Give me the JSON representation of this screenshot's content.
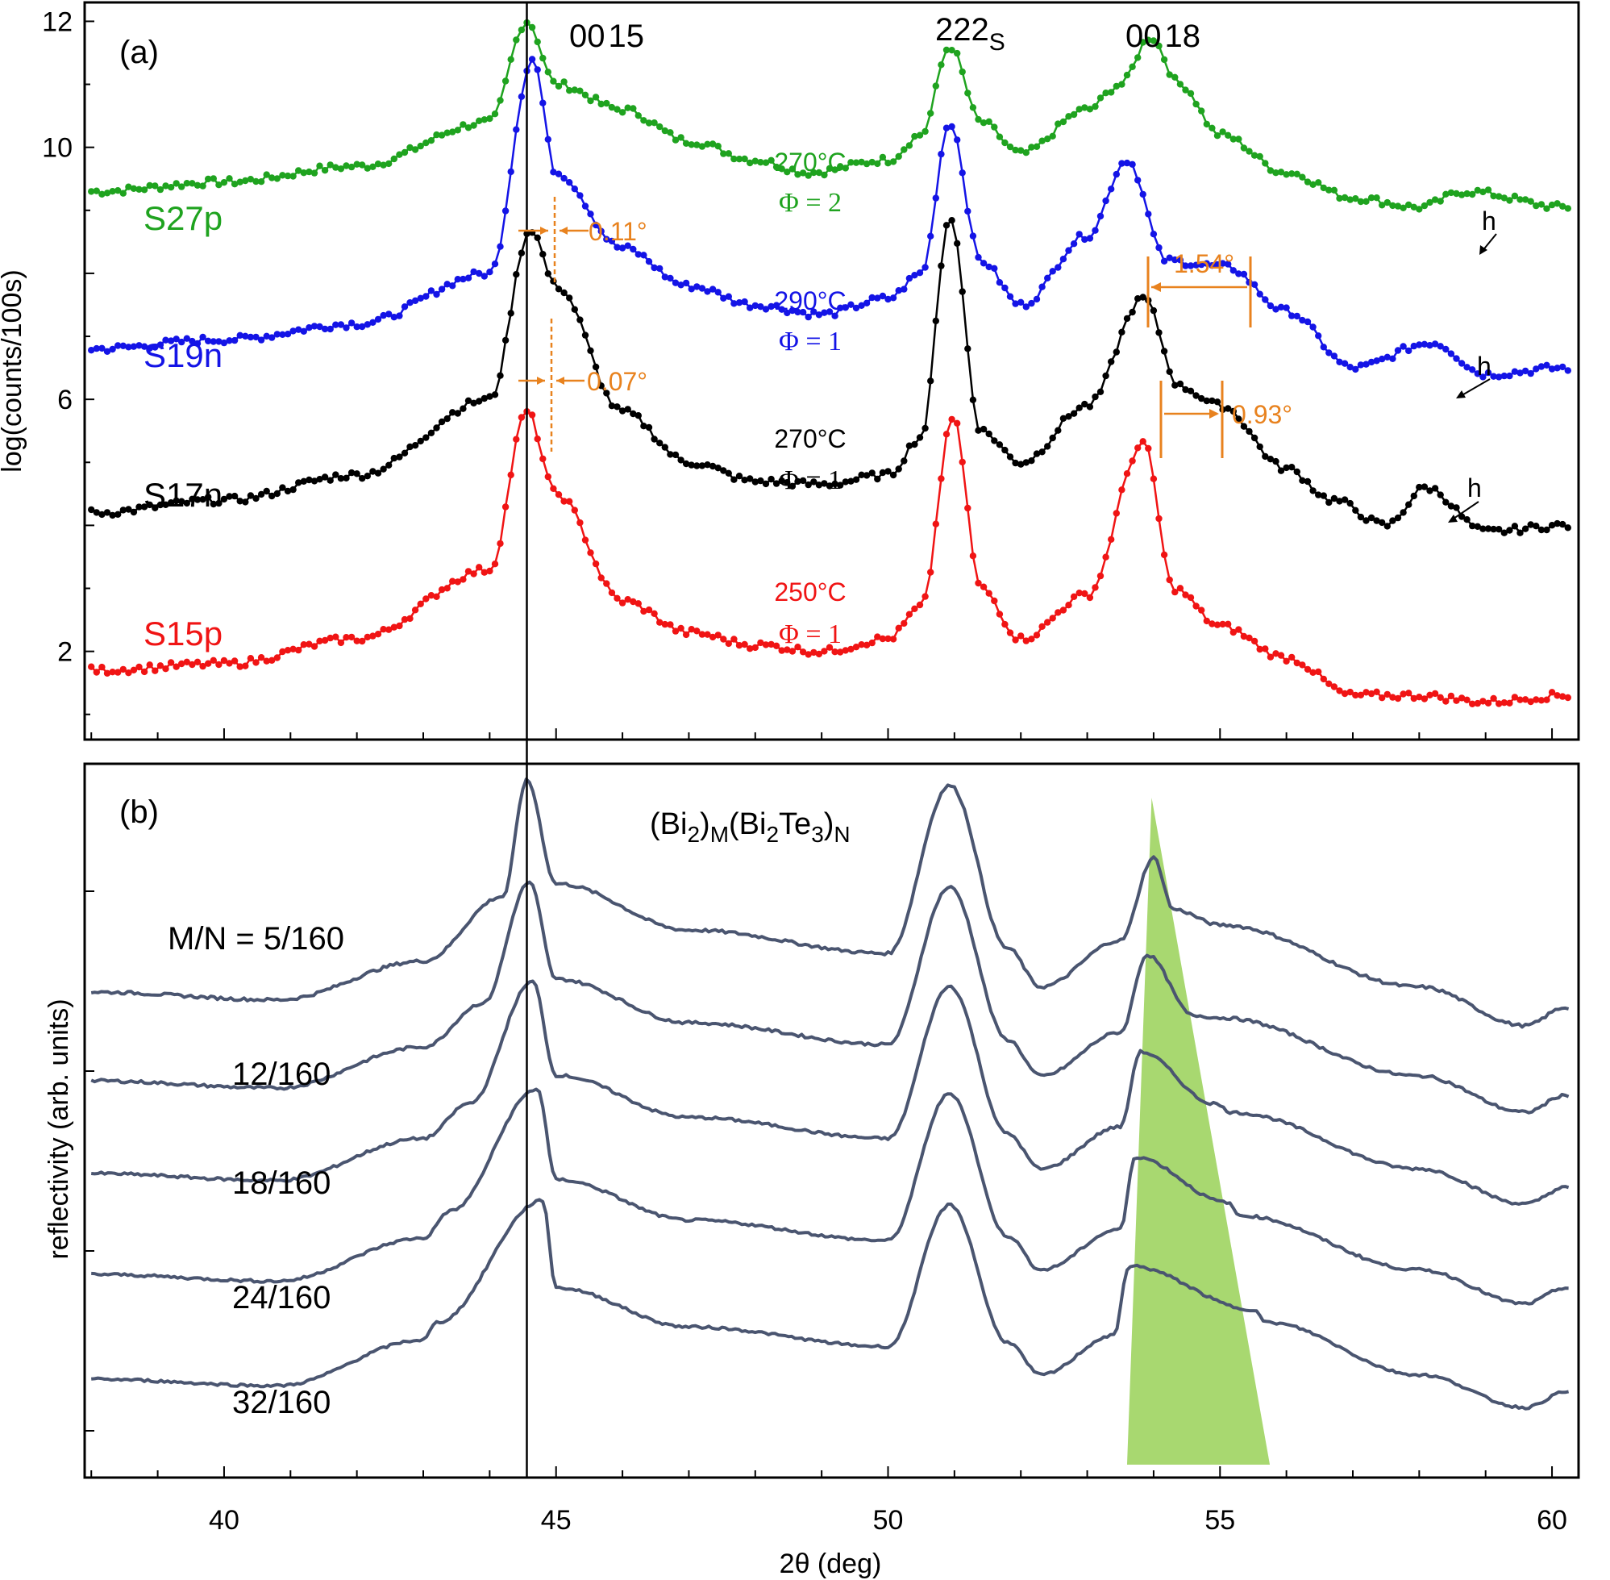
{
  "colors": {
    "green": "#1fa31f",
    "blue": "#1414e6",
    "black": "#000000",
    "red": "#f01414",
    "sim": "#4a5570",
    "orange": "#e8821e",
    "wedge": "#a8d870"
  },
  "chart_data": [
    {
      "type": "line",
      "panel_label": "(a)",
      "title": "",
      "xlabel": "",
      "ylabel": "log(counts/100s)",
      "xlim": [
        37.9,
        60.4
      ],
      "ylim": [
        0.6,
        12.3
      ],
      "xticks": [
        40,
        45,
        50,
        55,
        60
      ],
      "yticks": [
        2,
        6,
        10
      ],
      "ytick_labels": [
        "2",
        "6",
        "10"
      ],
      "top_tick_label": "12",
      "reference_line_x": 44.56,
      "peak_labels": [
        {
          "text": "00",
          "text2": "15",
          "x": 44.56,
          "y": 12.0
        },
        {
          "text": "222",
          "sub": "S",
          "x": 50.93,
          "y": 12.0
        },
        {
          "text": "00",
          "text2": "18",
          "x": 53.95,
          "y": 12.0
        }
      ],
      "series": [
        {
          "name": "S27p",
          "color_key": "green",
          "temperature": "270°C",
          "phi": "Φ = 2",
          "baseline": 9.3,
          "base_slope": 0.05,
          "bg_peak": 0.0,
          "bg_peak_x": 53.5,
          "bg_peak_w": 0.9,
          "x": [
            38,
            40,
            42,
            44,
            44.56,
            45,
            46,
            47,
            48,
            48.8,
            50,
            50.5,
            50.93,
            51.4,
            52,
            53,
            53.5,
            53.95,
            54.4,
            55,
            56,
            57,
            58,
            58.7,
            60.2
          ],
          "values": [
            9.3,
            9.45,
            9.7,
            10.4,
            12.0,
            11.0,
            10.6,
            10.1,
            9.8,
            9.6,
            9.8,
            10.2,
            11.6,
            10.4,
            9.9,
            10.6,
            11.0,
            11.75,
            11.0,
            10.2,
            9.6,
            9.2,
            9.05,
            9.3,
            9.05
          ]
        },
        {
          "name": "S19n",
          "color_key": "blue",
          "temperature": "290°C",
          "phi": "Φ = 1",
          "x": [
            38,
            40,
            42,
            44,
            44.65,
            45,
            46,
            47,
            48,
            49,
            50,
            50.5,
            50.93,
            51.4,
            52,
            53,
            53.6,
            54.2,
            55.1,
            56,
            57,
            58.2,
            59,
            60.2
          ],
          "values": [
            6.8,
            6.95,
            7.2,
            8.0,
            11.4,
            9.6,
            8.4,
            7.8,
            7.5,
            7.35,
            7.6,
            8.0,
            10.4,
            8.2,
            7.5,
            8.6,
            9.8,
            8.2,
            8.1,
            7.4,
            6.5,
            6.9,
            6.4,
            6.5
          ]
        },
        {
          "name": "S17n",
          "color_key": "black",
          "temperature": "270°C",
          "phi": "Φ = 1",
          "x": [
            38,
            40,
            42,
            44,
            44.62,
            45,
            46,
            47,
            48,
            49,
            50,
            50.5,
            50.93,
            51.4,
            52,
            53,
            53.85,
            54.4,
            55,
            56,
            56.7,
            57.5,
            58.1,
            59,
            60.2
          ],
          "values": [
            4.2,
            4.4,
            4.8,
            6.0,
            8.7,
            7.8,
            5.8,
            5.0,
            4.7,
            4.65,
            4.8,
            5.4,
            8.9,
            5.5,
            5.0,
            5.9,
            7.6,
            6.2,
            5.9,
            4.9,
            4.4,
            4.0,
            4.6,
            3.9,
            4.0
          ]
        },
        {
          "name": "S15p",
          "color_key": "red",
          "temperature": "250°C",
          "phi": "Φ = 1",
          "x": [
            38,
            40,
            42,
            44,
            44.56,
            45,
            46,
            47,
            48,
            49,
            50,
            50.5,
            50.98,
            51.4,
            52,
            53,
            53.85,
            54.3,
            55,
            56,
            57,
            58,
            59,
            60.2
          ],
          "values": [
            1.7,
            1.8,
            2.2,
            3.3,
            5.8,
            4.5,
            2.8,
            2.3,
            2.1,
            2.0,
            2.2,
            2.7,
            5.7,
            3.0,
            2.2,
            2.9,
            5.3,
            3.0,
            2.4,
            1.9,
            1.3,
            1.3,
            1.2,
            1.3
          ]
        }
      ],
      "annotations": [
        {
          "text": "0.11°",
          "color_key": "orange",
          "x": 44.7,
          "y": 9.6
        },
        {
          "text": "0.07°",
          "color_key": "orange",
          "x": 44.65,
          "y": 6.2
        },
        {
          "text": "1.54°",
          "color_key": "orange",
          "x": 54.4,
          "y": 9.1
        },
        {
          "text": "0.93°",
          "color_key": "orange",
          "x": 54.35,
          "y": 6.7
        },
        {
          "text": "h",
          "color_key": "black",
          "x": 58.6,
          "y": 9.4
        },
        {
          "text": "h",
          "color_key": "black",
          "x": 58.2,
          "y": 6.85
        },
        {
          "text": "h",
          "color_key": "black",
          "x": 58.0,
          "y": 4.5
        }
      ]
    },
    {
      "type": "line",
      "panel_label": "(b)",
      "title": "(Bi2)M(Bi2Te3)N",
      "xlabel": "2θ (deg)",
      "ylabel": "reflectivity (arb. units)",
      "xlim": [
        37.9,
        60.4
      ],
      "ylim": [
        0,
        1
      ],
      "xticks": [
        40,
        45,
        50,
        55,
        60
      ],
      "xtick_labels": [
        "40",
        "45",
        "50",
        "55",
        "60"
      ],
      "reference_line_x": 44.56,
      "series": [
        {
          "name": "M/N = 5/160",
          "values_note": "simulated curve",
          "offset": 4,
          "x": [
            38,
            40.8,
            43,
            44.2,
            44.56,
            45,
            47,
            50,
            50.93,
            51.8,
            52.3,
            53.5,
            54,
            54.3,
            55,
            58,
            59.6,
            60.2
          ],
          "values": [
            0.18,
            0.15,
            0.3,
            0.55,
            1.0,
            0.6,
            0.42,
            0.33,
            0.98,
            0.35,
            0.2,
            0.38,
            0.7,
            0.5,
            0.44,
            0.2,
            0.05,
            0.12
          ]
        },
        {
          "name": "12/160",
          "offset": 3,
          "x": [
            38,
            40.8,
            43,
            43.9,
            44.6,
            45,
            47,
            50,
            50.93,
            51.8,
            52.3,
            53.5,
            53.9,
            54.6,
            55,
            58,
            59.6,
            60.2
          ],
          "values": [
            0.18,
            0.15,
            0.32,
            0.5,
            1.0,
            0.6,
            0.42,
            0.33,
            0.98,
            0.35,
            0.2,
            0.38,
            0.7,
            0.45,
            0.44,
            0.2,
            0.05,
            0.12
          ]
        },
        {
          "name": "18/160",
          "offset": 2,
          "x": [
            38,
            40.8,
            43,
            43.7,
            44.65,
            45,
            47,
            50,
            50.93,
            51.8,
            52.3,
            53.5,
            53.8,
            54.9,
            55.2,
            58,
            59.6,
            60.2
          ],
          "values": [
            0.18,
            0.15,
            0.33,
            0.48,
            1.0,
            0.6,
            0.42,
            0.33,
            0.98,
            0.35,
            0.2,
            0.38,
            0.7,
            0.48,
            0.44,
            0.2,
            0.05,
            0.12
          ]
        },
        {
          "name": "24/160",
          "offset": 1,
          "x": [
            38,
            40.8,
            43,
            43.4,
            44.72,
            45,
            47,
            50,
            50.93,
            51.8,
            52.3,
            53.5,
            53.72,
            55.1,
            55.3,
            58,
            59.6,
            60.2
          ],
          "values": [
            0.18,
            0.15,
            0.34,
            0.46,
            1.0,
            0.6,
            0.42,
            0.33,
            0.98,
            0.35,
            0.2,
            0.38,
            0.7,
            0.5,
            0.44,
            0.2,
            0.05,
            0.12
          ]
        },
        {
          "name": "32/160",
          "offset": 0,
          "x": [
            38,
            40.8,
            43,
            43.2,
            44.8,
            45,
            47,
            50,
            50.93,
            51.8,
            52.3,
            53.4,
            53.63,
            55.5,
            55.7,
            58,
            59.6,
            60.2
          ],
          "values": [
            0.18,
            0.15,
            0.36,
            0.44,
            1.0,
            0.6,
            0.42,
            0.33,
            0.98,
            0.35,
            0.2,
            0.38,
            0.7,
            0.5,
            0.44,
            0.2,
            0.05,
            0.12
          ]
        }
      ],
      "shaded_region": {
        "label": "",
        "x_top": 53.97,
        "x_bottom_left": 53.6,
        "x_bottom_right": 55.75
      }
    }
  ],
  "labels": {
    "top_tick_a": "12",
    "title_b_main": "(Bi",
    "title_b_sub1": "2",
    "title_b_mid": ")",
    "title_b_sub2": "M",
    "title_b_open": "(Bi",
    "title_b_sub3": "2",
    "title_b_te": "Te",
    "title_b_sub4": "3",
    "title_b_close": ")",
    "title_b_sub5": "N"
  }
}
